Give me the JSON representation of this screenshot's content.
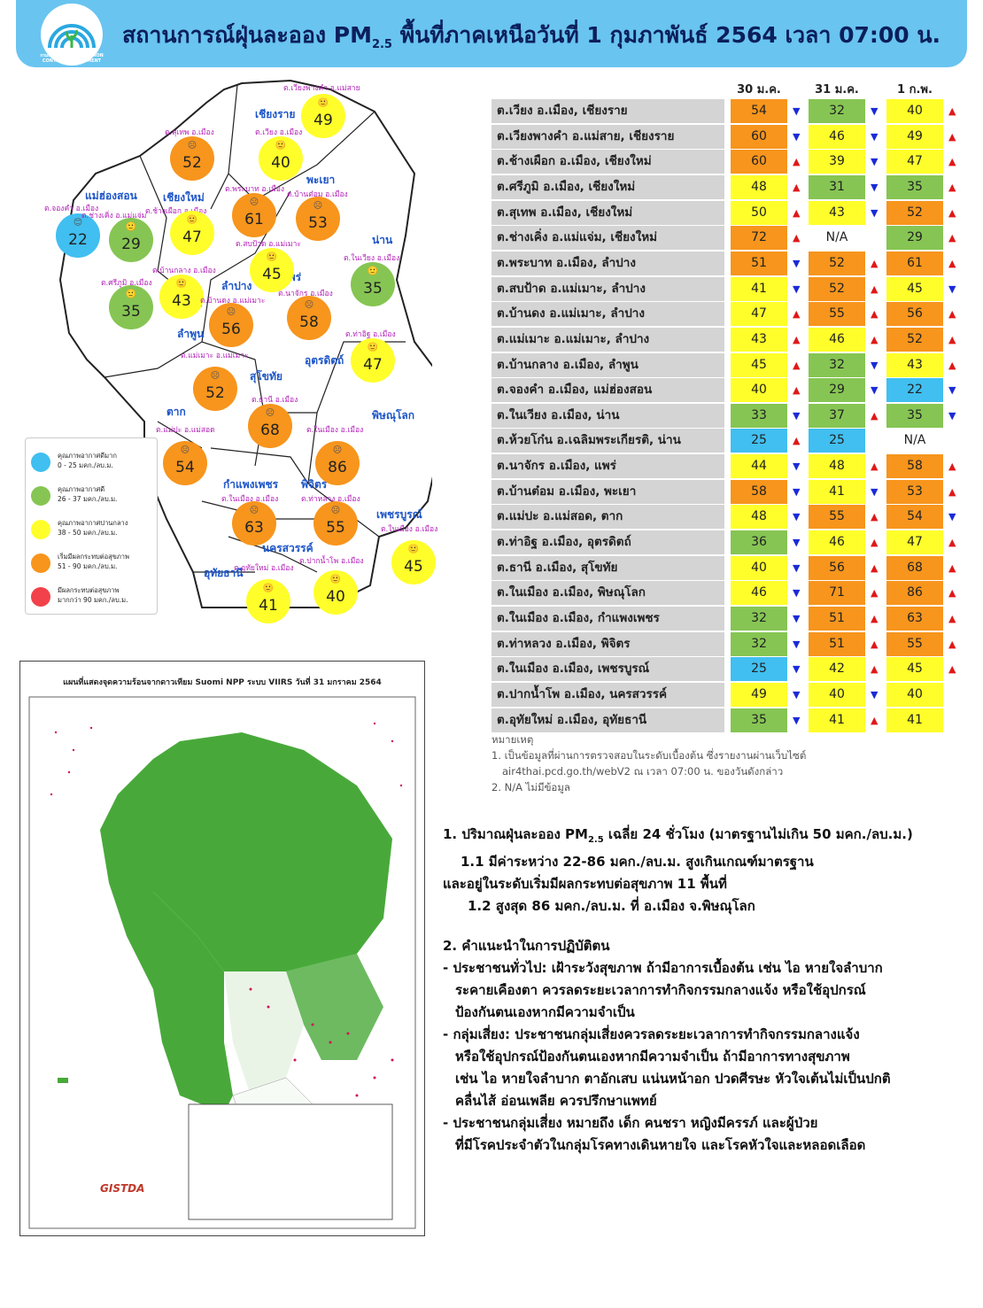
{
  "header": {
    "title_prefix": "สถานการณ์ฝุ่นละออง PM",
    "title_sub": "2.5",
    "title_suffix": " พื้นที่ภาคเหนือวันที่ 1 กุมภาพันธ์ 2564 เวลา 07:00 น.",
    "logo_text": "กรมควบคุมมลพิษ POLLUTION CONTROL DEPARTMENT"
  },
  "colors": {
    "header": "#69c4f0",
    "blue": "#40bff0",
    "green": "#86c553",
    "yellow": "#fffe2a",
    "orange": "#f7951d",
    "red": "#f2414a"
  },
  "map": {
    "provinces": [
      {
        "name": "เชียงราย"
      },
      {
        "name": "พะเยา"
      },
      {
        "name": "แม่ฮ่องสอน"
      },
      {
        "name": "เชียงใหม่"
      },
      {
        "name": "น่าน"
      },
      {
        "name": "ลำปาง"
      },
      {
        "name": "แพร่"
      },
      {
        "name": "ลำพูน"
      },
      {
        "name": "อุตรดิตถ์"
      },
      {
        "name": "สุโขทัย"
      },
      {
        "name": "ตาก"
      },
      {
        "name": "พิษณุโลก"
      },
      {
        "name": "กำแพงเพชร"
      },
      {
        "name": "พิจิตร"
      },
      {
        "name": "เพชรบูรณ์"
      },
      {
        "name": "นครสวรรค์"
      },
      {
        "name": "อุทัยธานี"
      }
    ],
    "stations": [
      {
        "label": "ต.เวียงพางคำ อ.แม่สาย",
        "value": "49",
        "level": "yellow",
        "face": "🙂"
      },
      {
        "label": "ต.สุเทพ อ.เมือง",
        "value": "52",
        "level": "orange",
        "face": "☹"
      },
      {
        "label": "ต.เวียง อ.เมือง",
        "value": "40",
        "level": "yellow",
        "face": "🙂"
      },
      {
        "label": "ต.จองคำ อ.เมือง",
        "value": "22",
        "level": "blue",
        "face": "😊"
      },
      {
        "label": "ต.ช่างเคิ่ง อ.แม่แจ่ม",
        "value": "29",
        "level": "green",
        "face": "🙂"
      },
      {
        "label": "ต.ช้างเผือก อ.เมือง",
        "value": "47",
        "level": "yellow",
        "face": "🙂"
      },
      {
        "label": "ต.พระบาท อ.เมือง",
        "value": "61",
        "level": "orange",
        "face": "☹"
      },
      {
        "label": "ต.บ้านต๋อม อ.เมือง",
        "value": "53",
        "level": "orange",
        "face": "☹"
      },
      {
        "label": "ต.สบป้าด อ.แม่เมาะ",
        "value": "45",
        "level": "yellow",
        "face": "🙂"
      },
      {
        "label": "ต.ในเวียง อ.เมือง",
        "value": "35",
        "level": "green",
        "face": "🙂"
      },
      {
        "label": "ต.บ้านกลาง อ.เมือง",
        "value": "43",
        "level": "yellow",
        "face": "🙂"
      },
      {
        "label": "ต.ศรีภูมิ อ.เมือง",
        "value": "35",
        "level": "green",
        "face": "🙂"
      },
      {
        "label": "ต.บ้านดง อ.แม่เมาะ",
        "value": "56",
        "level": "orange",
        "face": "☹"
      },
      {
        "label": "ต.นาจักร อ.เมือง",
        "value": "58",
        "level": "orange",
        "face": "☹"
      },
      {
        "label": "ต.ท่าอิฐ อ.เมือง",
        "value": "47",
        "level": "yellow",
        "face": "🙂"
      },
      {
        "label": "ต.แม่เมาะ อ.แม่เมาะ",
        "value": "52",
        "level": "orange",
        "face": "☹"
      },
      {
        "label": "ต.ธานี อ.เมือง",
        "value": "68",
        "level": "orange",
        "face": "☹"
      },
      {
        "label": "ต.แม่ปะ อ.แม่สอด",
        "value": "54",
        "level": "orange",
        "face": "☹"
      },
      {
        "label": "ต.ในเมือง อ.เมือง",
        "value": "86",
        "level": "orange",
        "face": "☹"
      },
      {
        "label": "ต.ในเมือง อ.เมือง",
        "value": "63",
        "level": "orange",
        "face": "☹"
      },
      {
        "label": "ต.ท่าหลวง อ.เมือง",
        "value": "55",
        "level": "orange",
        "face": "☹"
      },
      {
        "label": "ต.ในเมือง อ.เมือง",
        "value": "45",
        "level": "yellow",
        "face": "🙂"
      },
      {
        "label": "ต.อุทัยใหม่ อ.เมือง",
        "value": "41",
        "level": "yellow",
        "face": "🙂"
      },
      {
        "label": "ต.ปากน้ำโพ อ.เมือง",
        "value": "40",
        "level": "yellow",
        "face": "🙂"
      }
    ],
    "legend": [
      {
        "title": "คุณภาพอากาศดีมาก",
        "range": "0 - 25 มคก./ลบ.ม.",
        "level": "blue"
      },
      {
        "title": "คุณภาพอากาศดี",
        "range": "26 - 37 มคก./ลบ.ม.",
        "level": "green"
      },
      {
        "title": "คุณภาพอากาศปานกลาง",
        "range": "38 - 50 มคก./ลบ.ม.",
        "level": "yellow"
      },
      {
        "title": "เริ่มมีผลกระทบต่อสุขภาพ",
        "range": "51 - 90 มคก./ลบ.ม.",
        "level": "orange"
      },
      {
        "title": "มีผลกระทบต่อสุขภาพ",
        "range": "มากกว่า 90 มคก./ลบ.ม.",
        "level": "red"
      }
    ]
  },
  "table": {
    "columns": [
      "30 ม.ค.",
      "31 ม.ค.",
      "1 ก.พ."
    ],
    "rows": [
      {
        "station": "ต.เวียง อ.เมือง, เชียงราย",
        "v": [
          "54",
          "32",
          "40"
        ],
        "c": [
          "orange",
          "green",
          "yellow"
        ],
        "a": [
          "down",
          "down",
          "up"
        ]
      },
      {
        "station": "ต.เวียงพางคำ อ.แม่สาย, เชียงราย",
        "v": [
          "60",
          "46",
          "49"
        ],
        "c": [
          "orange",
          "yellow",
          "yellow"
        ],
        "a": [
          "down",
          "down",
          "up"
        ]
      },
      {
        "station": "ต.ช้างเผือก อ.เมือง, เชียงใหม่",
        "v": [
          "60",
          "39",
          "47"
        ],
        "c": [
          "orange",
          "yellow",
          "yellow"
        ],
        "a": [
          "up",
          "down",
          "up"
        ]
      },
      {
        "station": "ต.ศรีภูมิ อ.เมือง, เชียงใหม่",
        "v": [
          "48",
          "31",
          "35"
        ],
        "c": [
          "yellow",
          "green",
          "green"
        ],
        "a": [
          "up",
          "down",
          "up"
        ]
      },
      {
        "station": "ต.สุเทพ อ.เมือง, เชียงใหม่",
        "v": [
          "50",
          "43",
          "52"
        ],
        "c": [
          "yellow",
          "yellow",
          "orange"
        ],
        "a": [
          "up",
          "down",
          "up"
        ]
      },
      {
        "station": "ต.ช่างเคิ่ง อ.แม่แจ่ม, เชียงใหม่",
        "v": [
          "72",
          "N/A",
          "29"
        ],
        "c": [
          "orange",
          "none",
          "green"
        ],
        "a": [
          "up",
          "",
          "up"
        ]
      },
      {
        "station": "ต.พระบาท อ.เมือง, ลำปาง",
        "v": [
          "51",
          "52",
          "61"
        ],
        "c": [
          "orange",
          "orange",
          "orange"
        ],
        "a": [
          "down",
          "up",
          "up"
        ]
      },
      {
        "station": "ต.สบป้าด อ.แม่เมาะ, ลำปาง",
        "v": [
          "41",
          "52",
          "45"
        ],
        "c": [
          "yellow",
          "orange",
          "yellow"
        ],
        "a": [
          "down",
          "up",
          "down"
        ]
      },
      {
        "station": "ต.บ้านดง อ.แม่เมาะ, ลำปาง",
        "v": [
          "47",
          "55",
          "56"
        ],
        "c": [
          "yellow",
          "orange",
          "orange"
        ],
        "a": [
          "up",
          "up",
          "up"
        ]
      },
      {
        "station": "ต.แม่เมาะ อ.แม่เมาะ, ลำปาง",
        "v": [
          "43",
          "46",
          "52"
        ],
        "c": [
          "yellow",
          "yellow",
          "orange"
        ],
        "a": [
          "up",
          "up",
          "up"
        ]
      },
      {
        "station": "ต.บ้านกลาง อ.เมือง, ลำพูน",
        "v": [
          "45",
          "32",
          "43"
        ],
        "c": [
          "yellow",
          "green",
          "yellow"
        ],
        "a": [
          "up",
          "down",
          "up"
        ]
      },
      {
        "station": "ต.จองคำ อ.เมือง, แม่ฮ่องสอน",
        "v": [
          "40",
          "29",
          "22"
        ],
        "c": [
          "yellow",
          "green",
          "blue"
        ],
        "a": [
          "up",
          "down",
          "down"
        ]
      },
      {
        "station": "ต.ในเวียง อ.เมือง, น่าน",
        "v": [
          "33",
          "37",
          "35"
        ],
        "c": [
          "green",
          "green",
          "green"
        ],
        "a": [
          "down",
          "up",
          "down"
        ]
      },
      {
        "station": "ต.ห้วยโก๋น อ.เฉลิมพระเกียรติ, น่าน",
        "v": [
          "25",
          "25",
          "N/A"
        ],
        "c": [
          "blue",
          "blue",
          "none"
        ],
        "a": [
          "up",
          "",
          ""
        ]
      },
      {
        "station": "ต.นาจักร อ.เมือง, แพร่",
        "v": [
          "44",
          "48",
          "58"
        ],
        "c": [
          "yellow",
          "yellow",
          "orange"
        ],
        "a": [
          "down",
          "up",
          "up"
        ]
      },
      {
        "station": "ต.บ้านต๋อม อ.เมือง, พะเยา",
        "v": [
          "58",
          "41",
          "53"
        ],
        "c": [
          "orange",
          "yellow",
          "orange"
        ],
        "a": [
          "down",
          "down",
          "up"
        ]
      },
      {
        "station": "ต.แม่ปะ อ.แม่สอด, ตาก",
        "v": [
          "48",
          "55",
          "54"
        ],
        "c": [
          "yellow",
          "orange",
          "orange"
        ],
        "a": [
          "down",
          "up",
          "down"
        ]
      },
      {
        "station": "ต.ท่าอิฐ อ.เมือง, อุตรดิตถ์",
        "v": [
          "36",
          "46",
          "47"
        ],
        "c": [
          "green",
          "yellow",
          "yellow"
        ],
        "a": [
          "down",
          "up",
          "up"
        ]
      },
      {
        "station": "ต.ธานี อ.เมือง, สุโขทัย",
        "v": [
          "40",
          "56",
          "68"
        ],
        "c": [
          "yellow",
          "orange",
          "orange"
        ],
        "a": [
          "down",
          "up",
          "up"
        ]
      },
      {
        "station": "ต.ในเมือง อ.เมือง, พิษณุโลก",
        "v": [
          "46",
          "71",
          "86"
        ],
        "c": [
          "yellow",
          "orange",
          "orange"
        ],
        "a": [
          "down",
          "up",
          "up"
        ]
      },
      {
        "station": "ต.ในเมือง อ.เมือง, กำแพงเพชร",
        "v": [
          "32",
          "51",
          "63"
        ],
        "c": [
          "green",
          "orange",
          "orange"
        ],
        "a": [
          "down",
          "up",
          "up"
        ]
      },
      {
        "station": "ต.ท่าหลวง อ.เมือง, พิจิตร",
        "v": [
          "32",
          "51",
          "55"
        ],
        "c": [
          "green",
          "orange",
          "orange"
        ],
        "a": [
          "down",
          "up",
          "up"
        ]
      },
      {
        "station": "ต.ในเมือง อ.เมือง, เพชรบูรณ์",
        "v": [
          "25",
          "42",
          "45"
        ],
        "c": [
          "blue",
          "yellow",
          "yellow"
        ],
        "a": [
          "down",
          "up",
          "up"
        ]
      },
      {
        "station": "ต.ปากน้ำโพ อ.เมือง, นครสวรรค์",
        "v": [
          "49",
          "40",
          "40"
        ],
        "c": [
          "yellow",
          "yellow",
          "yellow"
        ],
        "a": [
          "down",
          "down",
          ""
        ]
      },
      {
        "station": "ต.อุทัยใหม่ อ.เมือง, อุทัยธานี",
        "v": [
          "35",
          "41",
          "41"
        ],
        "c": [
          "green",
          "yellow",
          "yellow"
        ],
        "a": [
          "down",
          "up",
          ""
        ]
      }
    ]
  },
  "notes": {
    "heading": "หมายเหตุ",
    "line1": "1. เป็นข้อมูลที่ผ่านการตรวจสอบในระดับเบื้องต้น ซึ่งรายงานผ่านเว็บไซต์",
    "line2": "air4thai.pcd.go.th/webV2 ณ เวลา 07:00 น. ของวันดังกล่าว",
    "line3": "2. N/A ไม่มีข้อมูล"
  },
  "satellite": {
    "title": "แผนที่แสดงจุดความร้อนจากดาวเทียม Suomi NPP ระบบ VIIRS วันที่ 31 มกราคม 2564",
    "brand": "GISTDA"
  },
  "summary": {
    "s1": "1. ปริมาณฝุ่นละออง PM",
    "s1sub": "2.5",
    "s1b": " เฉลี่ย 24 ชั่วโมง (มาตรฐานไม่เกิน 50 มคก./ลบ.ม.)",
    "s2": "1.1 มีค่าระหว่าง 22-86 มคก./ลบ.ม. สูงเกินเกณฑ์มาตรฐาน",
    "s3": "และอยู่ในระดับเริ่มมีผลกระทบต่อสุขภาพ 11 พื้นที่",
    "s4": "1.2 สูงสุด 86 มคก./ลบ.ม. ที่ อ.เมือง จ.พิษณุโลก",
    "s5": "2. คำแนะนำในการปฏิบัติตน",
    "s6": "- ประชาชนทั่วไป: เฝ้าระวังสุขภาพ ถ้ามีอาการเบื้องต้น เช่น ไอ หายใจลำบาก",
    "s7": "ระคายเคืองตา ควรลดระยะเวลาการทำกิจกรรมกลางแจ้ง หรือใช้อุปกรณ์",
    "s8": "ป้องกันตนเองหากมีความจำเป็น",
    "s9": "- กลุ่มเสี่ยง: ประชาชนกลุ่มเสี่ยงควรลดระยะเวลาการทำกิจกรรมกลางแจ้ง",
    "s10": "หรือใช้อุปกรณ์ป้องกันตนเองหากมีความจำเป็น ถ้ามีอาการทางสุขภาพ",
    "s11": "เช่น ไอ หายใจลำบาก ตาอักเสบ แน่นหน้าอก ปวดศีรษะ หัวใจเต้นไม่เป็นปกติ",
    "s12": "คลื่นไส้ อ่อนเพลีย ควรปรึกษาแพทย์",
    "s13": "- ประชาชนกลุ่มเสี่ยง หมายถึง เด็ก คนชรา หญิงมีครรภ์ และผู้ป่วย",
    "s14": "ที่มีโรคประจำตัวในกลุ่มโรคทางเดินหายใจ และโรคหัวใจและหลอดเลือด"
  }
}
